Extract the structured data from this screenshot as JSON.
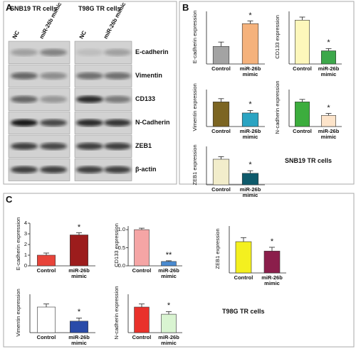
{
  "panels": [
    "A",
    "B",
    "C"
  ],
  "blot": {
    "cell_lines": [
      "SNB19 TR cells",
      "T98G TR cells"
    ],
    "lanes": [
      "NC",
      "miR-26b mimic",
      "NC",
      "miR-26b mimic"
    ],
    "proteins": [
      "E-cadherin",
      "Vimentin",
      "CD133",
      "N-Cadherin",
      "ZEB1",
      "β-actin"
    ]
  },
  "group_labels": [
    "SNB19 TR cells",
    "T98G TR cells"
  ],
  "chart_data": [
    {
      "type": "bar",
      "y_label": "E-cadherin expression",
      "categories": [
        "Control",
        "miR-26b mimic"
      ],
      "values": [
        1.0,
        2.3
      ],
      "errors": [
        0.25,
        0.15
      ],
      "significance": [
        null,
        "*"
      ],
      "colors": [
        "#a3a3a3",
        "#f5b27c"
      ],
      "ylim": [
        0,
        3
      ]
    },
    {
      "type": "bar",
      "y_label": "CD133 expression",
      "categories": [
        "Control",
        "miR-26b mimic"
      ],
      "values": [
        1.0,
        0.3
      ],
      "errors": [
        0.07,
        0.05
      ],
      "significance": [
        null,
        "*"
      ],
      "colors": [
        "#fdf7bb",
        "#3da84b"
      ],
      "ylim": [
        0,
        1.2
      ]
    },
    {
      "type": "bar",
      "y_label": "Vimentin expression",
      "categories": [
        "Control",
        "miR-26b mimic"
      ],
      "values": [
        1.0,
        0.55
      ],
      "errors": [
        0.13,
        0.1
      ],
      "significance": [
        null,
        "*"
      ],
      "colors": [
        "#7c6522",
        "#2ba4c2"
      ],
      "ylim": [
        0,
        1.5
      ]
    },
    {
      "type": "bar",
      "y_label": "N-cadherin expression",
      "categories": [
        "Control",
        "miR-26b mimic"
      ],
      "values": [
        1.0,
        0.45
      ],
      "errors": [
        0.1,
        0.08
      ],
      "significance": [
        null,
        "*"
      ],
      "colors": [
        "#3cad3d",
        "#fde4ca"
      ],
      "ylim": [
        0,
        1.5
      ]
    },
    {
      "type": "bar",
      "y_label": "ZEB1 expression",
      "categories": [
        "Control",
        "miR-26b mimic"
      ],
      "values": [
        1.0,
        0.45
      ],
      "errors": [
        0.1,
        0.1
      ],
      "significance": [
        null,
        "*"
      ],
      "colors": [
        "#f2edcb",
        "#0e5a6b"
      ],
      "ylim": [
        0,
        1.5
      ]
    },
    {
      "type": "bar",
      "y_label": "E-cadherin expression",
      "categories": [
        "Control",
        "miR-26b mimic"
      ],
      "values": [
        1.0,
        2.9
      ],
      "errors": [
        0.2,
        0.2
      ],
      "significance": [
        null,
        "*"
      ],
      "colors": [
        "#e8443a",
        "#9c1c1c"
      ],
      "ylim": [
        0,
        4
      ],
      "yticks": [
        0,
        1,
        2,
        3,
        4
      ]
    },
    {
      "type": "bar",
      "y_label": "CD133 expression",
      "categories": [
        "Control",
        "miR-26b mimic"
      ],
      "values": [
        1.0,
        0.12
      ],
      "errors": [
        0.04,
        0.02
      ],
      "significance": [
        null,
        "**"
      ],
      "colors": [
        "#f5a5a5",
        "#4a8bd1"
      ],
      "ylim": [
        0,
        1.1
      ],
      "yticks": [
        {
          "value": 0,
          "label": "0.0"
        },
        {
          "value": 0.5,
          "label": "0.5"
        },
        {
          "value": 1,
          "label": "1.0"
        }
      ]
    },
    {
      "type": "bar",
      "y_label": "ZEB1 expression",
      "categories": [
        "Control",
        "miR-26b mimic"
      ],
      "values": [
        1.0,
        0.7
      ],
      "errors": [
        0.13,
        0.12
      ],
      "significance": [
        null,
        "*"
      ],
      "colors": [
        "#f4f01f",
        "#8b1e4b"
      ],
      "ylim": [
        0,
        1.5
      ]
    },
    {
      "type": "bar",
      "y_label": "Vimentin expression",
      "categories": [
        "Control",
        "miR-26b mimic"
      ],
      "values": [
        1.0,
        0.45
      ],
      "errors": [
        0.12,
        0.12
      ],
      "significance": [
        null,
        "*"
      ],
      "colors": [
        "#ffffff",
        "#2a4ba9"
      ],
      "ylim": [
        0,
        1.5
      ]
    },
    {
      "type": "bar",
      "y_label": "N-cadherin expression",
      "categories": [
        "Control",
        "miR-26b mimic"
      ],
      "values": [
        1.0,
        0.72
      ],
      "errors": [
        0.12,
        0.1
      ],
      "significance": [
        null,
        "*"
      ],
      "colors": [
        "#e9312b",
        "#d9f4d1"
      ],
      "ylim": [
        0,
        1.5
      ]
    }
  ]
}
